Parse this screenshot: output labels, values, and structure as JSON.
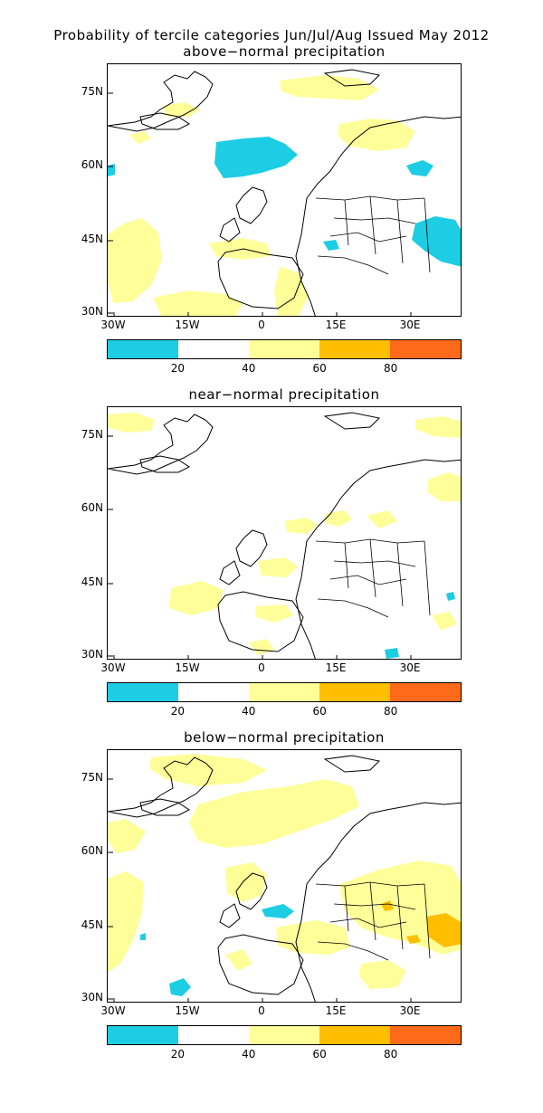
{
  "title_line": "Probability of tercile categories Jun/Jul/Aug Issued May 2012",
  "lat_labels": [
    "75N",
    "60N",
    "45N",
    "30N"
  ],
  "lon_labels": [
    "30W",
    "15W",
    "0",
    "15E",
    "30E"
  ],
  "colorbar": {
    "colors": [
      "#1ccde4",
      "#ffffff",
      "#ffff99",
      "#ffbf00",
      "#ff6a1a"
    ],
    "tick_labels": [
      "20",
      "40",
      "60",
      "80"
    ]
  },
  "panels": [
    {
      "title": "above−normal precipitation"
    },
    {
      "title": "near−normal precipitation"
    },
    {
      "title": "below−normal precipitation"
    }
  ]
}
